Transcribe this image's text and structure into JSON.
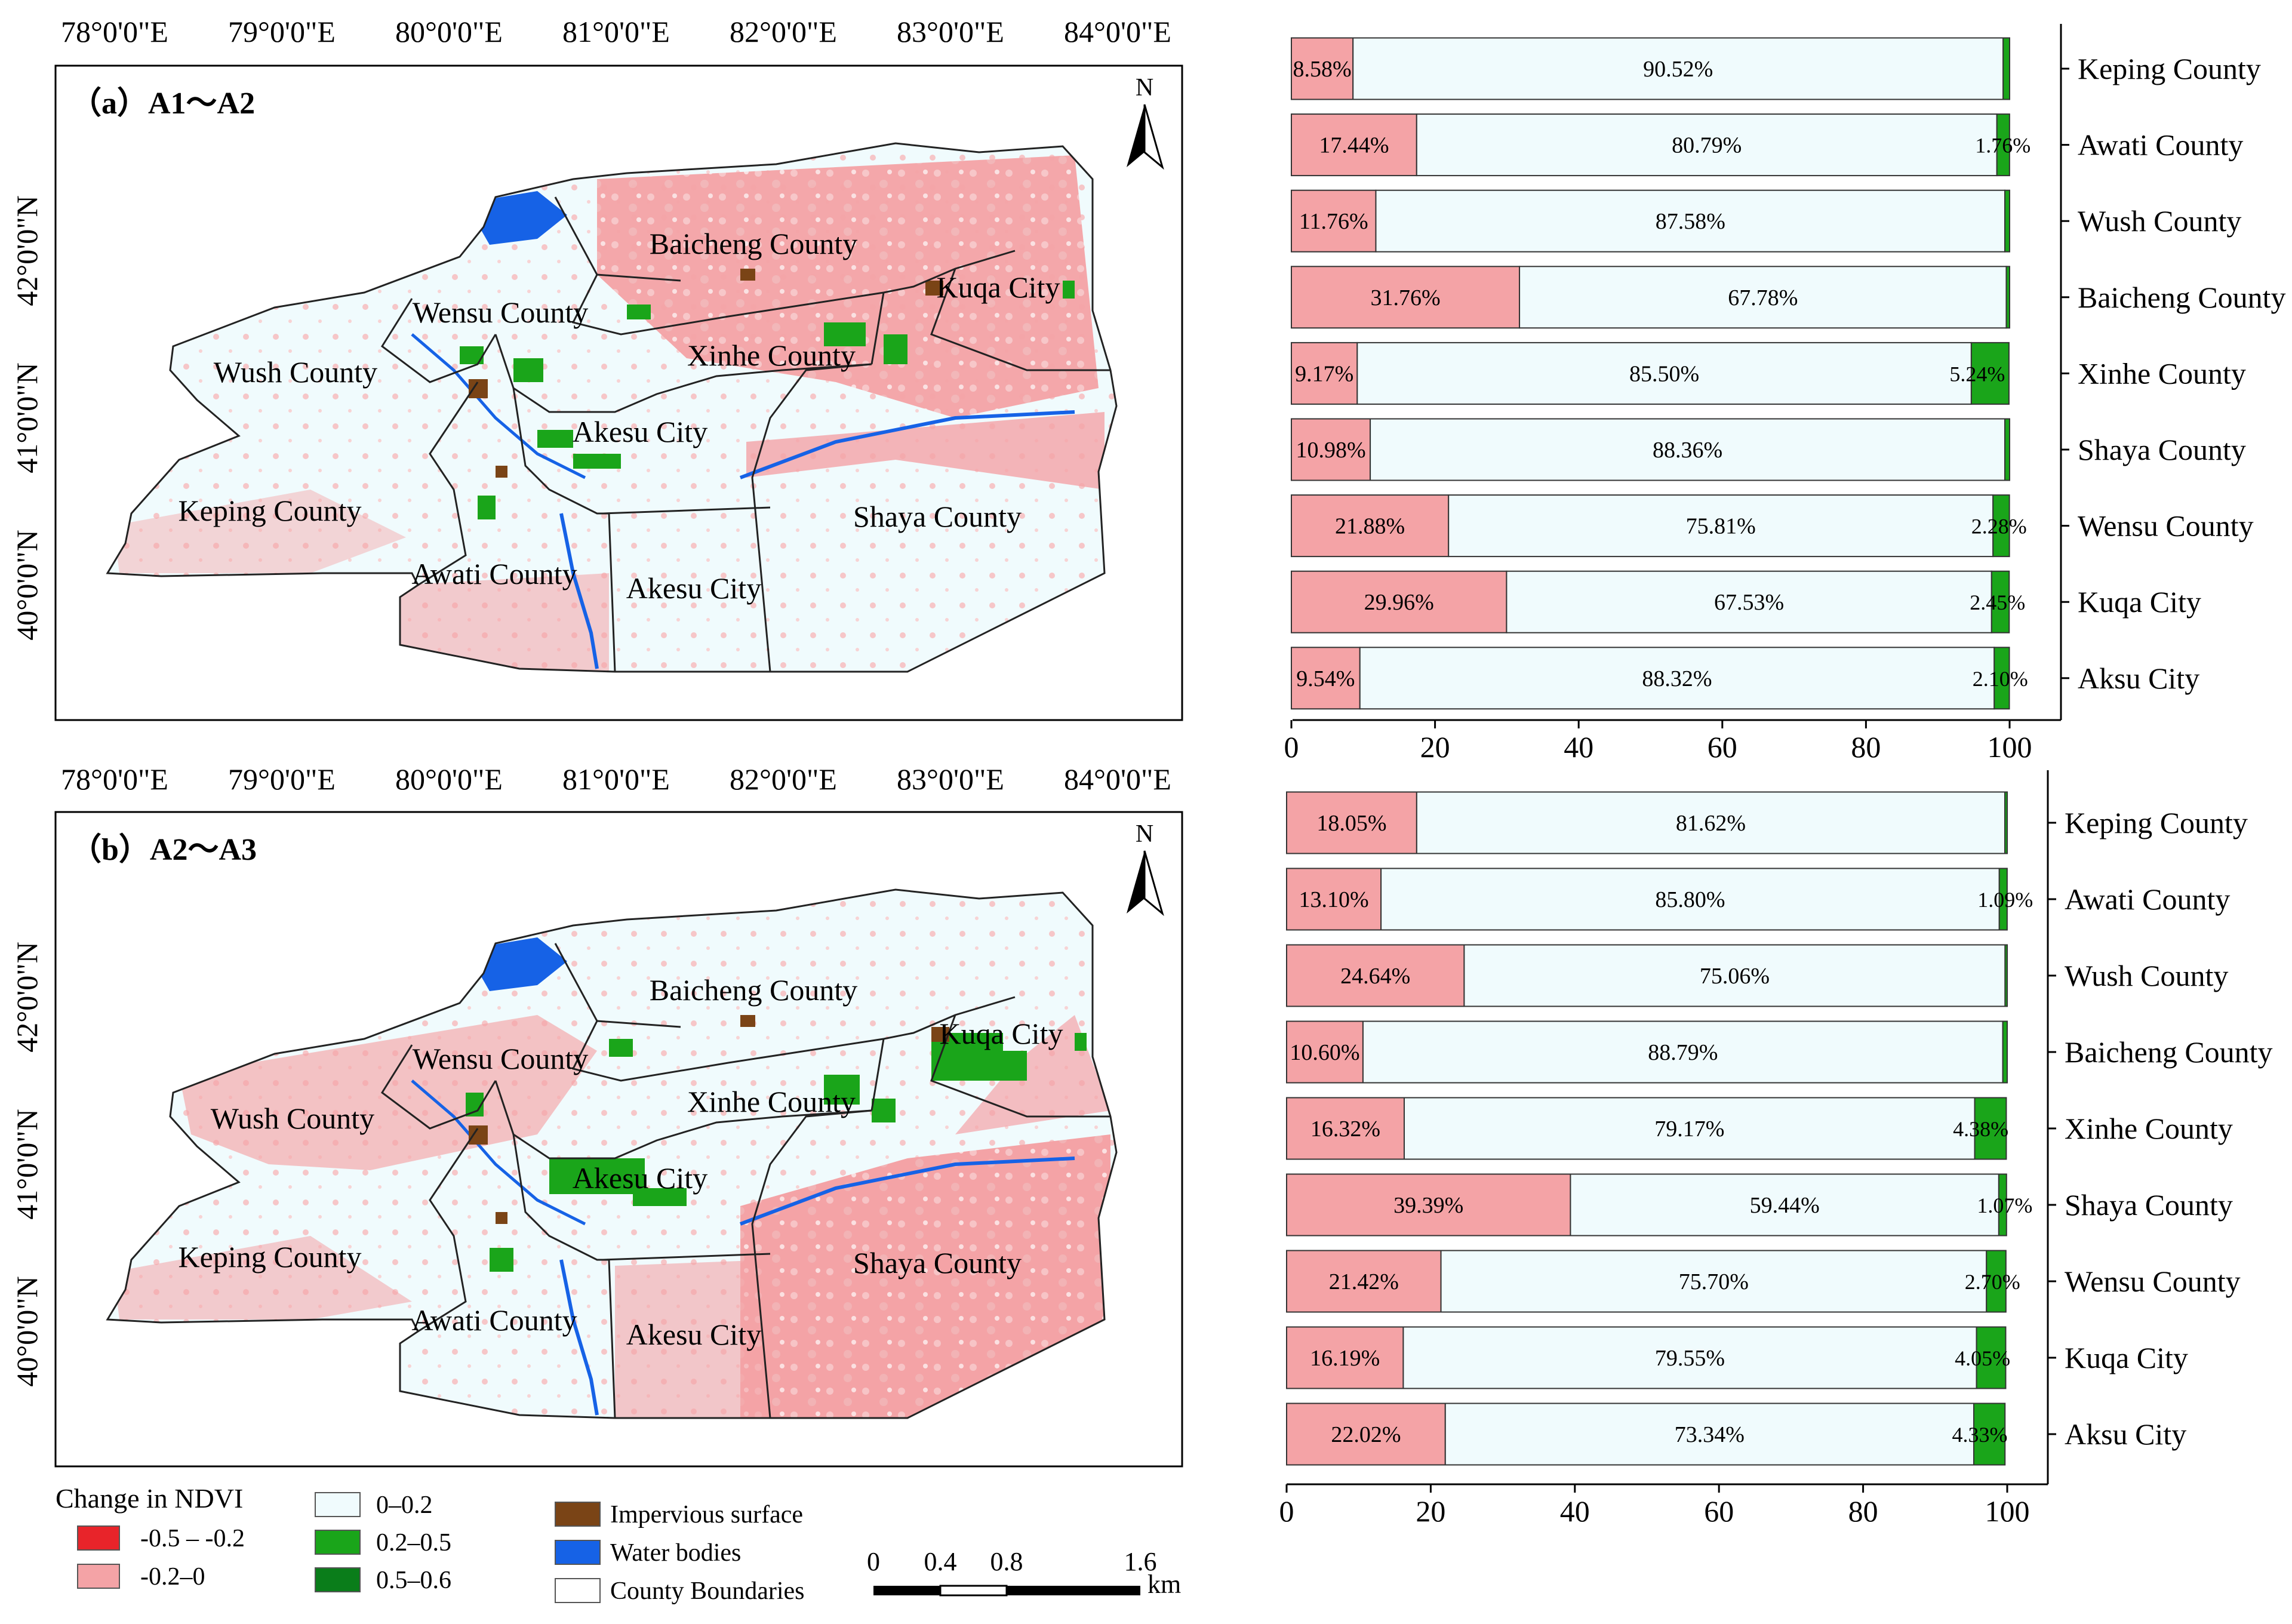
{
  "colors": {
    "decrease_strong": "#e8242a",
    "decrease_weak": "#f4a3a6",
    "stable": "#f0fbfd",
    "increase_mod": "#1aa51a",
    "increase_high": "#0a7d1a",
    "impervious": "#7a4416",
    "water": "#1662e6"
  },
  "maps": [
    {
      "panel_label": "（a）A1～A2",
      "lon_labels": [
        "78°0'0\"E",
        "79°0'0\"E",
        "80°0'0\"E",
        "81°0'0\"E",
        "82°0'0\"E",
        "83°0'0\"E",
        "84°0'0\"E"
      ],
      "lat_labels": [
        "42°0'0\"N",
        "41°0'0\"N",
        "40°0'0\"N"
      ],
      "north": "N",
      "places": [
        "Baicheng County",
        "Kuqa City",
        "Wensu County",
        "Xinhe County",
        "Wush County",
        "Akesu City",
        "Keping County",
        "Shaya County",
        "Awati County",
        "Akesu City"
      ]
    },
    {
      "panel_label": "（b）A2～A3",
      "lon_labels": [
        "78°0'0\"E",
        "79°0'0\"E",
        "80°0'0\"E",
        "81°0'0\"E",
        "82°0'0\"E",
        "83°0'0\"E",
        "84°0'0\"E"
      ],
      "lat_labels": [
        "42°0'0\"N",
        "41°0'0\"N",
        "40°0'0\"N"
      ],
      "north": "N",
      "places": [
        "Baicheng County",
        "Kuqa City",
        "Wensu County",
        "Xinhe County",
        "Wush County",
        "Akesu City",
        "Keping County",
        "Shaya County",
        "Awati County",
        "Akesu City"
      ]
    }
  ],
  "legend": {
    "title": "Change in NDVI",
    "items": [
      {
        "label": "-0.5 – -0.2",
        "color": "#e8242a"
      },
      {
        "label": "-0.2–0",
        "color": "#f4a3a6"
      },
      {
        "label": "0–0.2",
        "color": "#f0fbfd"
      },
      {
        "label": "0.2–0.5",
        "color": "#1aa51a"
      },
      {
        "label": "0.5–0.6",
        "color": "#0a7d1a"
      },
      {
        "label": "Impervious surface",
        "color": "#7a4416"
      },
      {
        "label": "Water bodies",
        "color": "#1662e6"
      },
      {
        "label": "County Boundaries",
        "color": "#ffffff"
      }
    ]
  },
  "scalebar": {
    "ticks": [
      "0",
      "0.4",
      "0.8",
      "1.6"
    ],
    "unit": "km"
  },
  "chart_data": [
    {
      "type": "bar",
      "orientation": "horizontal",
      "stacked": true,
      "title": "(a) A1～A2",
      "categories": [
        "Keping County",
        "Awati County",
        "Wush County",
        "Baicheng County",
        "Xinhe County",
        "Shaya County",
        "Wensu County",
        "Kuqa City",
        "Aksu City"
      ],
      "series": [
        {
          "name": "-0.2–0",
          "values": [
            8.58,
            17.44,
            11.76,
            31.76,
            9.17,
            10.98,
            21.88,
            29.96,
            9.54
          ],
          "labels": [
            "8.58%",
            "17.44%",
            "11.76%",
            "31.76%",
            "9.17%",
            "10.98%",
            "21.88%",
            "29.96%",
            "9.54%"
          ]
        },
        {
          "name": "0–0.2",
          "values": [
            90.52,
            80.79,
            87.58,
            67.78,
            85.5,
            88.36,
            75.81,
            67.53,
            88.32
          ],
          "labels": [
            "90.52%",
            "80.79%",
            "87.58%",
            "67.78%",
            "85.50%",
            "88.36%",
            "75.81%",
            "67.53%",
            "88.32%"
          ]
        },
        {
          "name": "0.2–0.6",
          "values": [
            0.9,
            1.76,
            0.66,
            0.46,
            5.24,
            0.66,
            2.28,
            2.45,
            2.1
          ],
          "labels": [
            "",
            "1.76%",
            "",
            "",
            "5.24%",
            "",
            "2.28%",
            "2.45%",
            "2.10%"
          ]
        }
      ],
      "xlim": [
        0,
        100
      ],
      "xticks": [
        "0",
        "20",
        "40",
        "60",
        "80",
        "100"
      ]
    },
    {
      "type": "bar",
      "orientation": "horizontal",
      "stacked": true,
      "title": "(b) A2～A3",
      "categories": [
        "Keping County",
        "Awati County",
        "Wush County",
        "Baicheng County",
        "Xinhe County",
        "Shaya County",
        "Wensu County",
        "Kuqa City",
        "Aksu City"
      ],
      "series": [
        {
          "name": "-0.2–0",
          "values": [
            18.05,
            13.1,
            24.64,
            10.6,
            16.32,
            39.39,
            21.42,
            16.19,
            22.02
          ],
          "labels": [
            "18.05%",
            "13.10%",
            "24.64%",
            "10.60%",
            "16.32%",
            "39.39%",
            "21.42%",
            "16.19%",
            "22.02%"
          ]
        },
        {
          "name": "0–0.2",
          "values": [
            81.62,
            85.8,
            75.06,
            88.79,
            79.17,
            59.44,
            75.7,
            79.55,
            73.34
          ],
          "labels": [
            "81.62%",
            "85.80%",
            "75.06%",
            "88.79%",
            "79.17%",
            "59.44%",
            "75.70%",
            "79.55%",
            "73.34%"
          ]
        },
        {
          "name": "0.2–0.6",
          "values": [
            0.33,
            1.09,
            0.3,
            0.61,
            4.38,
            1.07,
            2.7,
            4.05,
            4.33
          ],
          "labels": [
            "",
            "1.09%",
            "",
            "",
            "4.38%",
            "1.07%",
            "2.70%",
            "4.05%",
            "4.33%"
          ]
        }
      ],
      "xlim": [
        0,
        100
      ],
      "xticks": [
        "0",
        "20",
        "40",
        "60",
        "80",
        "100"
      ]
    }
  ]
}
